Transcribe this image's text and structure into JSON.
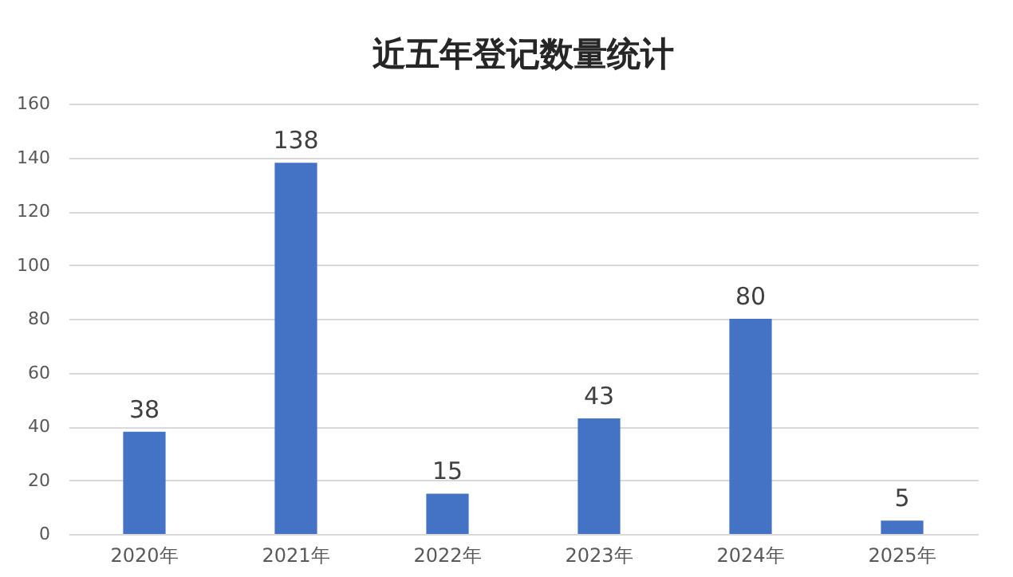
{
  "chart_data": {
    "type": "bar",
    "title": "近五年登记数量统计",
    "categories": [
      "2020年",
      "2021年",
      "2022年",
      "2023年",
      "2024年",
      "2025年"
    ],
    "values": [
      38,
      138,
      15,
      43,
      80,
      5
    ],
    "color": "#4472c4",
    "ylim": [
      0,
      160
    ],
    "yticks": [
      0,
      20,
      40,
      60,
      80,
      100,
      120,
      140,
      160
    ],
    "grid": "y",
    "data_labels": true
  }
}
